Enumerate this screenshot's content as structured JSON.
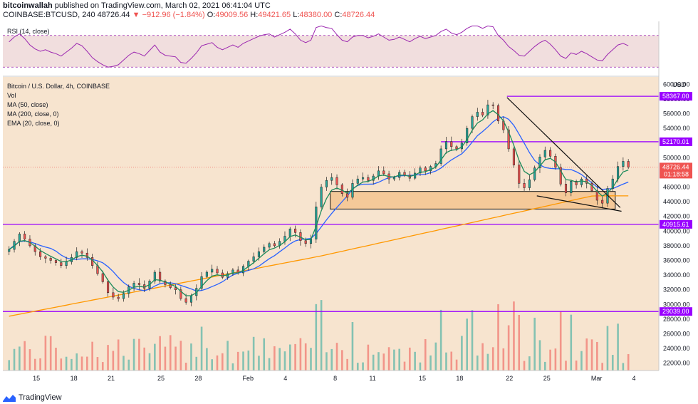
{
  "header": {
    "publisher": "bitcoinwallah",
    "published_text": "published on TradingView.com, March 02, 2021 06:41:04 UTC",
    "symbol": "COINBASE:BTCUSD, 240",
    "last": "48726.44",
    "change": "−912.96 (−1.84%)",
    "o_label": "O:",
    "o_value": "49009.56",
    "h_label": "H:",
    "h_value": "49421.65",
    "l_label": "L:",
    "l_value": "48380.00",
    "c_label": "C:",
    "c_value": "48726.44"
  },
  "rsi_label": "RSI (14, close)",
  "indicators": [
    "Bitcoin / U.S. Dollar, 4h, COINBASE",
    "Vol",
    "MA (50, close)",
    "MA (200, close, 0)",
    "EMA (20, close, 0)"
  ],
  "footer": {
    "brand": "TradingView"
  },
  "colors": {
    "bg": "#f7e4cf",
    "rsi_bg": "#f1dede",
    "rsi_line": "#9c27b0",
    "ma50": "#2962ff",
    "ma200": "#ff9800",
    "ema20": "#1b8a5a",
    "level": "#9900ff",
    "up": "#26a69a",
    "down": "#ef5350",
    "box": "#f5c48f"
  },
  "chart_data": {
    "type": "candlestick",
    "currency_label": "USD",
    "y_ticks": [
      22000,
      24000,
      26000,
      28000,
      30000,
      32000,
      34000,
      36000,
      38000,
      40000,
      42000,
      44000,
      46000,
      48000,
      50000,
      52000,
      54000,
      56000,
      58000,
      60000
    ],
    "y_tick_labels": [
      "22000.00",
      "24000.00",
      "26000.00",
      "28000.00",
      "30000.00",
      "32000.00",
      "34000.00",
      "36000.00",
      "38000.00",
      "40000.00",
      "42000.00",
      "44000.00",
      "46000.00",
      "48000.00",
      "50000.00",
      "52000.00",
      "54000.00",
      "56000.00",
      "58000.00",
      "60000.00"
    ],
    "x_ticks": [
      "15",
      "18",
      "21",
      "25",
      "28",
      "Feb",
      "4",
      "8",
      "11",
      "15",
      "18",
      "22",
      "25",
      "Mar",
      "4"
    ],
    "x_tick_days": [
      15,
      18,
      21,
      25,
      28,
      32,
      35,
      39,
      42,
      46,
      49,
      53,
      56,
      60,
      63
    ],
    "ylim": [
      21000,
      61000
    ],
    "xlim": [
      12.3,
      65
    ],
    "levels": [
      {
        "value": 58367.0,
        "label": "58367.00",
        "x_from_day": 52.8
      },
      {
        "value": 52170.01,
        "label": "52170.01",
        "x_from_day": 47.5
      },
      {
        "value": 40915.61,
        "label": "40915.61",
        "x_from_day": 12.3
      },
      {
        "value": 29039.0,
        "label": "29039.00",
        "x_from_day": 12.3
      }
    ],
    "current_price": {
      "value": 48726.44,
      "label": "48726.44",
      "countdown": "01:18:58"
    },
    "support_box": {
      "day_from": 38.6,
      "day_to": 61.5,
      "high": 45400,
      "low": 43000
    },
    "wedge": {
      "upper": [
        [
          52.8,
          58200
        ],
        [
          61.9,
          43200
        ]
      ],
      "lower": [
        [
          55.2,
          44800
        ],
        [
          62.0,
          42700
        ]
      ]
    },
    "closes": [
      37500,
      38600,
      39600,
      38900,
      38000,
      37200,
      36500,
      36300,
      36000,
      35700,
      35300,
      35800,
      36400,
      37200,
      37000,
      36400,
      35300,
      34200,
      33100,
      31600,
      31000,
      30800,
      31500,
      32400,
      32900,
      32700,
      32200,
      33200,
      34400,
      33200,
      32700,
      32300,
      32000,
      30800,
      30300,
      31200,
      32200,
      33800,
      34400,
      34800,
      34300,
      33700,
      34200,
      34700,
      34300,
      35200,
      35900,
      36500,
      37200,
      37800,
      38300,
      38000,
      38600,
      39300,
      40300,
      39800,
      38700,
      38300,
      38900,
      43300,
      46000,
      46900,
      47300,
      46300,
      45100,
      44600,
      46500,
      47100,
      47300,
      46900,
      47500,
      48200,
      47800,
      47100,
      47300,
      48000,
      47600,
      47200,
      47900,
      48600,
      48200,
      48800,
      49200,
      51200,
      52200,
      51500,
      51200,
      52000,
      54000,
      55600,
      56200,
      55800,
      57200,
      57100,
      55000,
      53800,
      51200,
      49000,
      46500,
      45900,
      47000,
      48600,
      50100,
      51000,
      50200,
      48700,
      46400,
      45200,
      46800,
      46300,
      47100,
      46500,
      45500,
      44200,
      43800,
      45800,
      47100,
      48800,
      49500,
      48726
    ],
    "rsi": [
      62,
      68,
      72,
      66,
      58,
      53,
      50,
      52,
      49,
      47,
      44,
      49,
      54,
      60,
      57,
      50,
      42,
      37,
      33,
      30,
      31,
      33,
      39,
      45,
      49,
      47,
      44,
      51,
      58,
      49,
      45,
      44,
      43,
      36,
      35,
      41,
      48,
      57,
      59,
      61,
      55,
      52,
      55,
      58,
      55,
      60,
      63,
      66,
      69,
      71,
      72,
      68,
      71,
      74,
      78,
      72,
      64,
      61,
      64,
      80,
      82,
      80,
      79,
      71,
      64,
      62,
      68,
      70,
      70,
      67,
      69,
      72,
      68,
      64,
      65,
      68,
      65,
      62,
      66,
      69,
      66,
      68,
      70,
      75,
      78,
      73,
      71,
      74,
      79,
      82,
      82,
      79,
      82,
      81,
      70,
      64,
      56,
      51,
      45,
      44,
      50,
      56,
      61,
      64,
      59,
      52,
      44,
      41,
      48,
      46,
      50,
      47,
      43,
      39,
      38,
      46,
      52,
      58,
      60,
      57
    ],
    "rsi_ticks": [
      40,
      60,
      80
    ],
    "rsi_ylim": [
      23,
      86
    ],
    "rsi_band": [
      30,
      70
    ]
  }
}
